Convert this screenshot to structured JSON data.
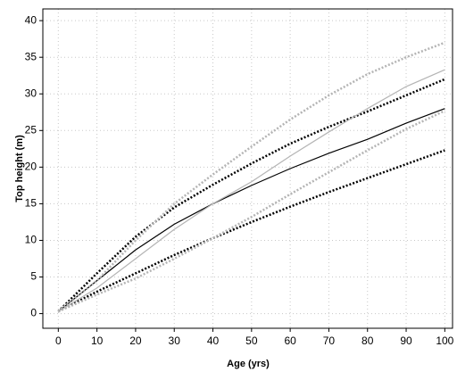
{
  "chart_data": {
    "type": "line",
    "x_label": "Age (yrs)",
    "y_label": "Top height (m)",
    "x": [
      0,
      10,
      20,
      30,
      40,
      50,
      60,
      70,
      80,
      90,
      100
    ],
    "series": [
      {
        "color": "#000000",
        "dotted": false,
        "values": [
          0.3,
          4.5,
          8.7,
          12.2,
          15,
          17.5,
          19.8,
          21.9,
          23.8,
          26,
          28
        ]
      },
      {
        "color": "#000000",
        "dotted": true,
        "values": [
          0.3,
          5.5,
          10.5,
          14.5,
          17.6,
          20.5,
          23.2,
          25.5,
          27.6,
          29.8,
          32
        ]
      },
      {
        "color": "#000000",
        "dotted": true,
        "values": [
          0.3,
          3,
          5.5,
          8,
          10.3,
          12.5,
          14.6,
          16.6,
          18.5,
          20.4,
          22.3
        ]
      },
      {
        "color": "#b4b4b4",
        "dotted": false,
        "values": [
          0.3,
          3.5,
          7.5,
          11.5,
          15,
          18,
          21.5,
          24.8,
          28,
          31,
          33.3
        ]
      },
      {
        "color": "#b4b4b4",
        "dotted": true,
        "values": [
          0.3,
          4.5,
          10,
          15,
          19,
          22.8,
          26.5,
          29.8,
          32.7,
          35,
          37
        ]
      },
      {
        "color": "#b4b4b4",
        "dotted": true,
        "values": [
          0.3,
          2.6,
          4.8,
          7.5,
          10.3,
          13.2,
          16.3,
          19.3,
          22.3,
          25.2,
          27.7
        ]
      }
    ],
    "xlim": [
      -4,
      102
    ],
    "ylim": [
      -2,
      41.6
    ],
    "xticks": [
      0,
      10,
      20,
      30,
      40,
      50,
      60,
      70,
      80,
      90,
      100
    ],
    "yticks": [
      0,
      5,
      10,
      15,
      20,
      25,
      30,
      35,
      40
    ],
    "grid": true
  }
}
